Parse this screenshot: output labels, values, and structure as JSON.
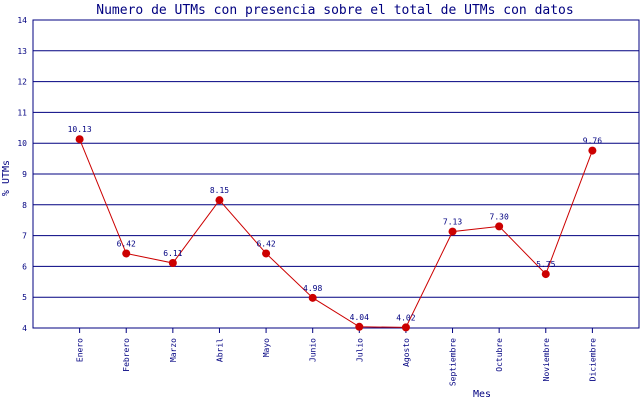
{
  "chart_data": {
    "type": "line",
    "title": "Numero de UTMs con presencia sobre el total de UTMs con datos",
    "xlabel": "Mes",
    "ylabel": "% UTMs",
    "categories": [
      "Enero",
      "Febrero",
      "Marzo",
      "Abril",
      "Mayo",
      "Junio",
      "Julio",
      "Agosto",
      "Septiembre",
      "Octubre",
      "Noviembre",
      "Diciembre"
    ],
    "values": [
      10.13,
      6.42,
      6.11,
      8.15,
      6.42,
      4.98,
      4.04,
      4.02,
      7.13,
      7.3,
      5.75,
      9.76
    ],
    "data_labels": [
      "10.13",
      "6.42",
      "6.11",
      "8.15",
      "6.42",
      "4.98",
      "4.04",
      "4.02",
      "7.13",
      "7.30",
      "5.75",
      "9.76"
    ],
    "yticks": [
      "4",
      "5",
      "6",
      "7",
      "8",
      "9",
      "10",
      "11",
      "12",
      "13",
      "14"
    ],
    "ylim": [
      4,
      14
    ],
    "grid": true,
    "colors": {
      "line": "#cc0000",
      "marker": "#cc0000",
      "grid": "#000080",
      "text": "#000080"
    }
  }
}
